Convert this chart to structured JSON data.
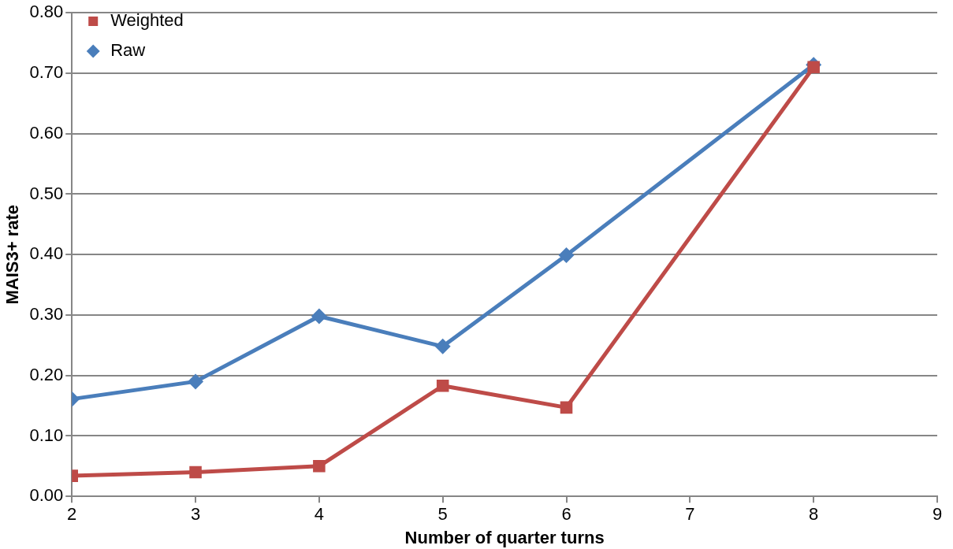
{
  "chart_data": {
    "type": "line",
    "xlabel": "Number of quarter turns",
    "ylabel": "MAIS3+ rate",
    "x": [
      2,
      3,
      4,
      5,
      6,
      8
    ],
    "series": [
      {
        "name": "Raw",
        "color": "#4a7ebb",
        "marker": "diamond",
        "values": [
          0.161,
          0.19,
          0.298,
          0.248,
          0.399,
          0.714
        ]
      },
      {
        "name": "Weighted",
        "color": "#be4b48",
        "marker": "square",
        "values": [
          0.034,
          0.04,
          0.05,
          0.183,
          0.147,
          0.71
        ]
      }
    ],
    "xlim": [
      2,
      9
    ],
    "xticks": [
      2,
      3,
      4,
      5,
      6,
      7,
      8,
      9
    ],
    "ylim": [
      0,
      0.8
    ],
    "yticks": [
      {
        "value": 0,
        "label": "0.00"
      },
      {
        "value": 0.1,
        "label": "0.10"
      },
      {
        "value": 0.2,
        "label": "0.20"
      },
      {
        "value": 0.3,
        "label": "0.30"
      },
      {
        "value": 0.4,
        "label": "0.40"
      },
      {
        "value": 0.5,
        "label": "0.50"
      },
      {
        "value": 0.6,
        "label": "0.60"
      },
      {
        "value": 0.7,
        "label": "0.70"
      },
      {
        "value": 0.8,
        "label": "0.80"
      }
    ],
    "grid": "y",
    "legend": "top left",
    "line_style": "solid"
  }
}
